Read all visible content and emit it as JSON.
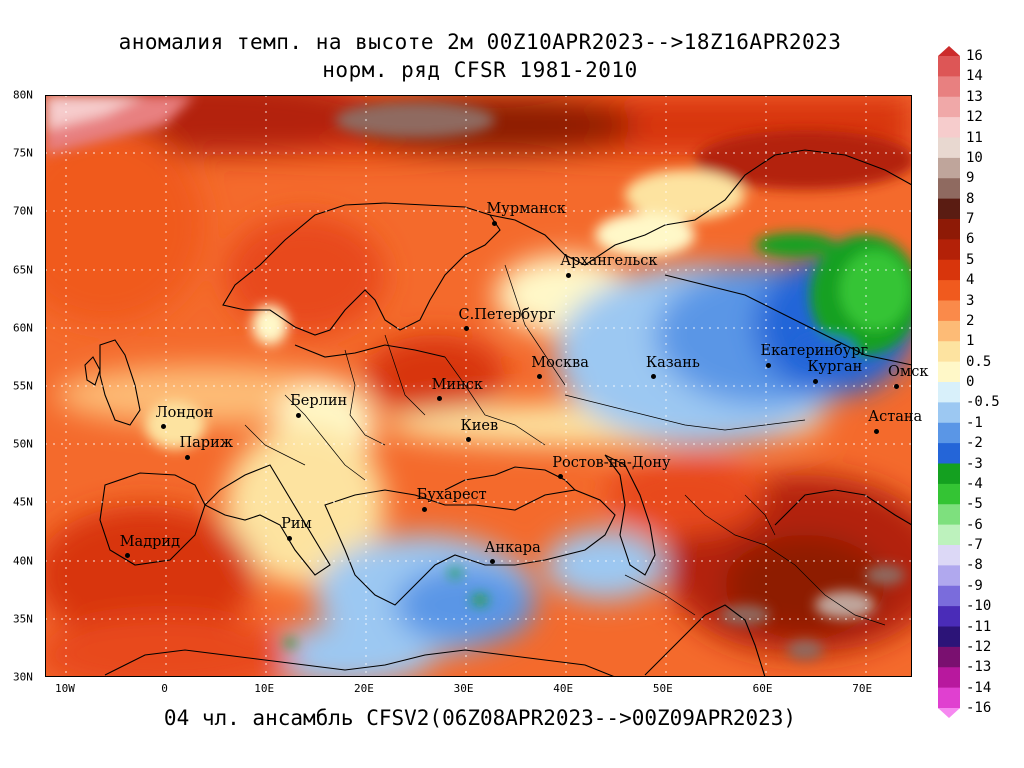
{
  "title": {
    "line1": "аномалия темп. на высоте 2м 00Z10APR2023-->18Z16APR2023",
    "line2": "норм. ряд CFSR 1981-2010"
  },
  "footer": "04 чл. ансамбль CFSV2(06Z08APR2023-->00Z09APR2023)",
  "map": {
    "lat_labels": [
      "80N",
      "75N",
      "70N",
      "65N",
      "60N",
      "55N",
      "50N",
      "45N",
      "40N",
      "35N",
      "30N"
    ],
    "lon_labels": [
      "10W",
      "0",
      "10E",
      "20E",
      "30E",
      "40E",
      "50E",
      "60E",
      "70E"
    ],
    "cities": [
      {
        "name": "Мурманск",
        "lon": 33.1,
        "lat": 69.0
      },
      {
        "name": "Архангельск",
        "lon": 40.5,
        "lat": 64.5
      },
      {
        "name": "С.Петербург",
        "lon": 30.3,
        "lat": 59.9
      },
      {
        "name": "Москва",
        "lon": 37.6,
        "lat": 55.8
      },
      {
        "name": "Казань",
        "lon": 49.1,
        "lat": 55.8
      },
      {
        "name": "Екатеринбург",
        "lon": 60.6,
        "lat": 56.8
      },
      {
        "name": "Курган",
        "lon": 65.3,
        "lat": 55.4
      },
      {
        "name": "Омск",
        "lon": 73.4,
        "lat": 55.0
      },
      {
        "name": "Астана",
        "lon": 71.4,
        "lat": 51.1
      },
      {
        "name": "Минск",
        "lon": 27.6,
        "lat": 53.9
      },
      {
        "name": "Берлин",
        "lon": 13.4,
        "lat": 52.5
      },
      {
        "name": "Лондон",
        "lon": -0.1,
        "lat": 51.5
      },
      {
        "name": "Париж",
        "lon": 2.3,
        "lat": 48.9
      },
      {
        "name": "Киев",
        "lon": 30.5,
        "lat": 50.4
      },
      {
        "name": "Ростов-на-Дону",
        "lon": 39.7,
        "lat": 47.2
      },
      {
        "name": "Бухарест",
        "lon": 26.1,
        "lat": 44.4
      },
      {
        "name": "Рим",
        "lon": 12.5,
        "lat": 41.9
      },
      {
        "name": "Мадрид",
        "lon": -3.7,
        "lat": 40.4
      },
      {
        "name": "Анкара",
        "lon": 32.9,
        "lat": 39.9
      }
    ]
  },
  "colorbar": {
    "labels": [
      "16",
      "14",
      "13",
      "12",
      "11",
      "10",
      "9",
      "8",
      "7",
      "6",
      "5",
      "4",
      "3",
      "2",
      "1",
      "0.5",
      "0",
      "-0.5",
      "-1",
      "-2",
      "-3",
      "-4",
      "-5",
      "-6",
      "-7",
      "-8",
      "-9",
      "-10",
      "-11",
      "-12",
      "-13",
      "-14",
      "-16"
    ],
    "colors": [
      "#cc2b2b",
      "#dd5656",
      "#e88080",
      "#f0a8a8",
      "#f6cccc",
      "#e8d8d0",
      "#bfa59b",
      "#8f6a60",
      "#5a1c12",
      "#8e1a06",
      "#b32108",
      "#d8350c",
      "#f05a1e",
      "#fa8a4a",
      "#fdbb76",
      "#fde3a0",
      "#fff8c8",
      "#d8f0fa",
      "#9cc8f2",
      "#5a96e6",
      "#2465d8",
      "#14a020",
      "#34c434",
      "#7ee07e",
      "#bdf2bd",
      "#dcd8f6",
      "#b0a8ee",
      "#7a6cdc",
      "#4a2cb8",
      "#2c1478",
      "#7a1070",
      "#b8189e",
      "#e040d0",
      "#f688f0"
    ]
  }
}
